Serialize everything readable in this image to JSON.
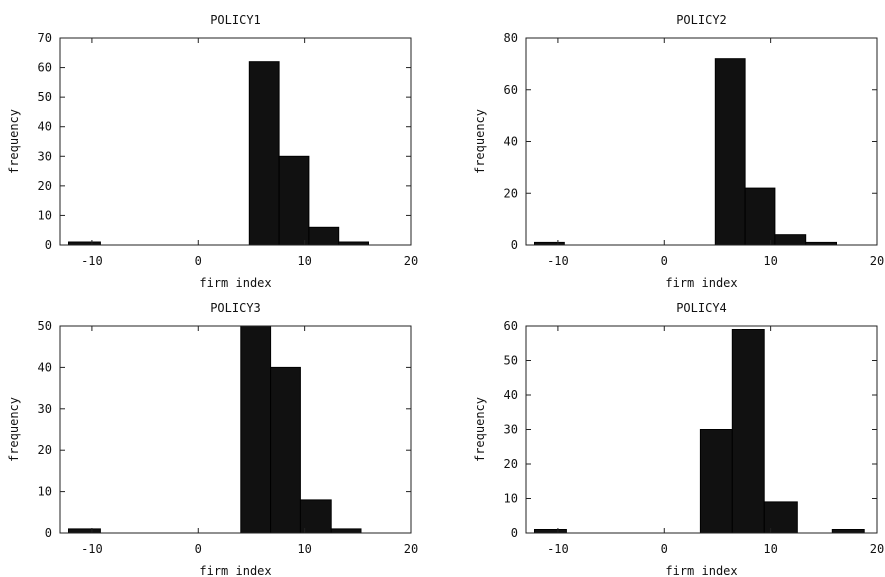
{
  "chart_data": [
    {
      "type": "bar",
      "title": "POLICY1",
      "xlabel": "firm index",
      "ylabel": "frequency",
      "xlim": [
        -13,
        20
      ],
      "ylim": [
        0,
        70
      ],
      "xticks": [
        "-10",
        "0",
        "10",
        "20"
      ],
      "yticks": [
        "0",
        "10",
        "20",
        "30",
        "40",
        "50",
        "60",
        "70"
      ],
      "bins": [
        {
          "x0": -12.2,
          "x1": -9.2,
          "value": 1
        },
        {
          "x0": 4.8,
          "x1": 7.6,
          "value": 62
        },
        {
          "x0": 7.6,
          "x1": 10.4,
          "value": 30
        },
        {
          "x0": 10.4,
          "x1": 13.2,
          "value": 6
        },
        {
          "x0": 13.2,
          "x1": 16.0,
          "value": 1
        }
      ]
    },
    {
      "type": "bar",
      "title": "POLICY2",
      "xlabel": "firm index",
      "ylabel": "frequency",
      "xlim": [
        -13,
        20
      ],
      "ylim": [
        0,
        80
      ],
      "xticks": [
        "-10",
        "0",
        "10",
        "20"
      ],
      "yticks": [
        "0",
        "20",
        "40",
        "60",
        "80"
      ],
      "bins": [
        {
          "x0": -12.2,
          "x1": -9.4,
          "value": 1
        },
        {
          "x0": 4.8,
          "x1": 7.6,
          "value": 72
        },
        {
          "x0": 7.6,
          "x1": 10.4,
          "value": 22
        },
        {
          "x0": 10.4,
          "x1": 13.3,
          "value": 4
        },
        {
          "x0": 13.3,
          "x1": 16.2,
          "value": 1
        }
      ]
    },
    {
      "type": "bar",
      "title": "POLICY3",
      "xlabel": "firm index",
      "ylabel": "frequency",
      "xlim": [
        -13,
        20
      ],
      "ylim": [
        0,
        50
      ],
      "xticks": [
        "-10",
        "0",
        "10",
        "20"
      ],
      "yticks": [
        "0",
        "10",
        "20",
        "30",
        "40",
        "50"
      ],
      "bins": [
        {
          "x0": -12.2,
          "x1": -9.2,
          "value": 1
        },
        {
          "x0": 4.0,
          "x1": 6.8,
          "value": 50
        },
        {
          "x0": 6.8,
          "x1": 9.6,
          "value": 40
        },
        {
          "x0": 9.6,
          "x1": 12.5,
          "value": 8
        },
        {
          "x0": 12.5,
          "x1": 15.3,
          "value": 1
        }
      ]
    },
    {
      "type": "bar",
      "title": "POLICY4",
      "xlabel": "firm index",
      "ylabel": "frequency",
      "xlim": [
        -13,
        20
      ],
      "ylim": [
        0,
        60
      ],
      "xticks": [
        "-10",
        "0",
        "10",
        "20"
      ],
      "yticks": [
        "0",
        "10",
        "20",
        "30",
        "40",
        "50",
        "60"
      ],
      "bins": [
        {
          "x0": -12.2,
          "x1": -9.2,
          "value": 1
        },
        {
          "x0": 3.4,
          "x1": 6.4,
          "value": 30
        },
        {
          "x0": 6.4,
          "x1": 9.4,
          "value": 59
        },
        {
          "x0": 9.4,
          "x1": 12.5,
          "value": 9
        },
        {
          "x0": 15.8,
          "x1": 18.8,
          "value": 1
        }
      ]
    }
  ]
}
